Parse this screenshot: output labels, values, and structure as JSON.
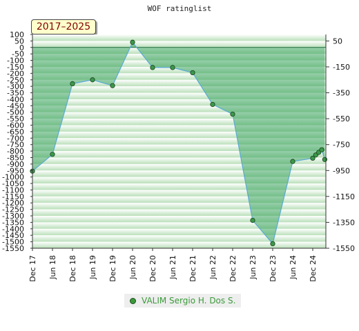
{
  "chart_data": {
    "type": "area",
    "title": "WOF ratinglist",
    "range_label": "2017–2025",
    "x_tick_labels": [
      "Dec 17",
      "Jun 18",
      "Dec 18",
      "Jun 19",
      "Dec 19",
      "Jun 20",
      "Dec 20",
      "Jun 21",
      "Dec 21",
      "Jun 22",
      "Dec 22",
      "Jun 23",
      "Dec 23",
      "Jun 24",
      "Dec 24"
    ],
    "left_axis": {
      "ylim": [
        -1550,
        100
      ],
      "ticks": [
        100,
        50,
        0,
        -50,
        -100,
        -150,
        -200,
        -250,
        -300,
        -350,
        -400,
        -450,
        -500,
        -550,
        -600,
        -650,
        -700,
        -750,
        -800,
        -850,
        -900,
        -950,
        -1000,
        -1050,
        -1100,
        -1150,
        -1200,
        -1250,
        -1300,
        -1350,
        -1400,
        -1450,
        -1500,
        -1550
      ]
    },
    "right_axis": {
      "ticks": [
        50,
        -150,
        -350,
        -550,
        -750,
        -950,
        -1150,
        -1350,
        -1550
      ]
    },
    "baseline": 0,
    "series": [
      {
        "name": "VALIM Sergio H. Dos S.",
        "color": "#2e8b57",
        "line_color": "#5aa9d6",
        "points": [
          {
            "x": 0,
            "y": -955
          },
          {
            "x": 1,
            "y": -825
          },
          {
            "x": 2,
            "y": -280
          },
          {
            "x": 3,
            "y": -250
          },
          {
            "x": 4,
            "y": -295
          },
          {
            "x": 5,
            "y": 40
          },
          {
            "x": 6,
            "y": -155
          },
          {
            "x": 7,
            "y": -155
          },
          {
            "x": 8,
            "y": -195
          },
          {
            "x": 9,
            "y": -440
          },
          {
            "x": 10,
            "y": -515
          },
          {
            "x": 11,
            "y": -1335
          },
          {
            "x": 12,
            "y": -1515
          },
          {
            "x": 13,
            "y": -880
          },
          {
            "x": 14,
            "y": -855
          },
          {
            "x": 14.15,
            "y": -830
          },
          {
            "x": 14.3,
            "y": -810
          },
          {
            "x": 14.45,
            "y": -790
          },
          {
            "x": 14.6,
            "y": -865
          }
        ]
      }
    ],
    "grid": true,
    "legend_position": "bottom-center"
  }
}
